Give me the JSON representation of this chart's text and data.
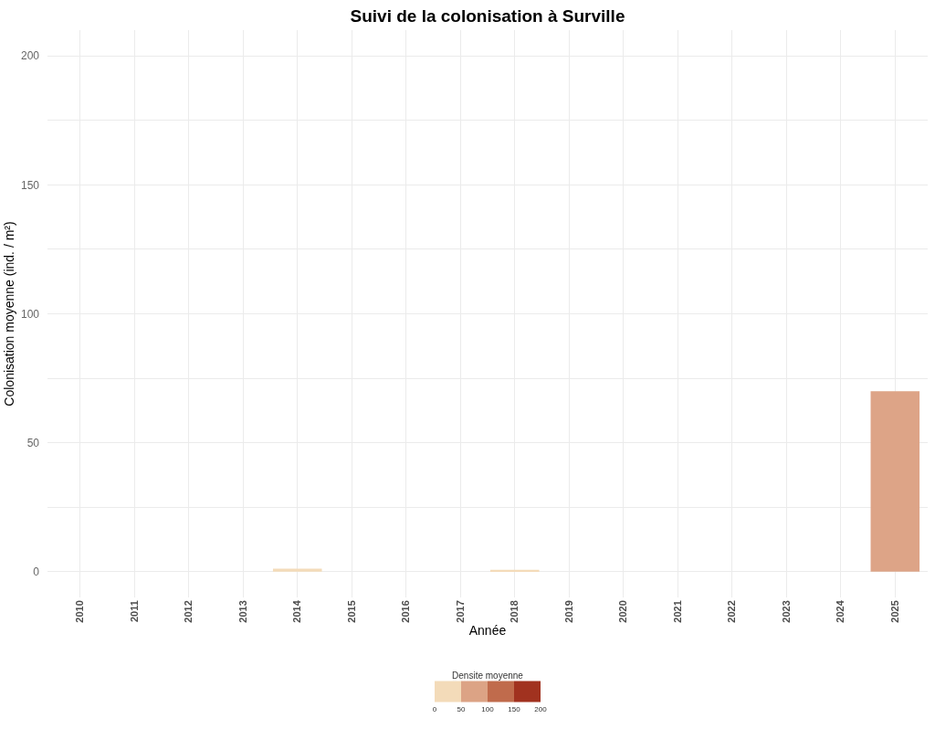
{
  "chart_data": {
    "type": "bar",
    "title": "Suivi de la colonisation à Surville",
    "xlabel": "Année",
    "ylabel": "Colonisation moyenne (ind. / m²)",
    "clabel": "Densite moyenne",
    "categories": [
      "2010",
      "2011",
      "2012",
      "2013",
      "2014",
      "2015",
      "2016",
      "2017",
      "2018",
      "2019",
      "2020",
      "2021",
      "2022",
      "2023",
      "2024",
      "2025"
    ],
    "values": [
      null,
      null,
      null,
      null,
      1.2,
      null,
      null,
      null,
      0.7,
      null,
      null,
      null,
      null,
      null,
      null,
      70
    ],
    "colors": [
      null,
      null,
      null,
      null,
      "#f4dbb9",
      null,
      null,
      null,
      "#f4dbb9",
      null,
      null,
      null,
      null,
      null,
      null,
      "#dda487"
    ],
    "clim": [
      0,
      200
    ],
    "cticks": [
      0,
      50,
      100,
      150,
      200
    ],
    "ylim": [
      -10,
      210
    ],
    "yticks": [
      0,
      {
        "value": 25,
        "label": null
      },
      50,
      {
        "value": 75,
        "label": null
      },
      100,
      {
        "value": 125,
        "label": null
      },
      150,
      {
        "value": 175,
        "label": null
      },
      200
    ],
    "grid": true
  }
}
